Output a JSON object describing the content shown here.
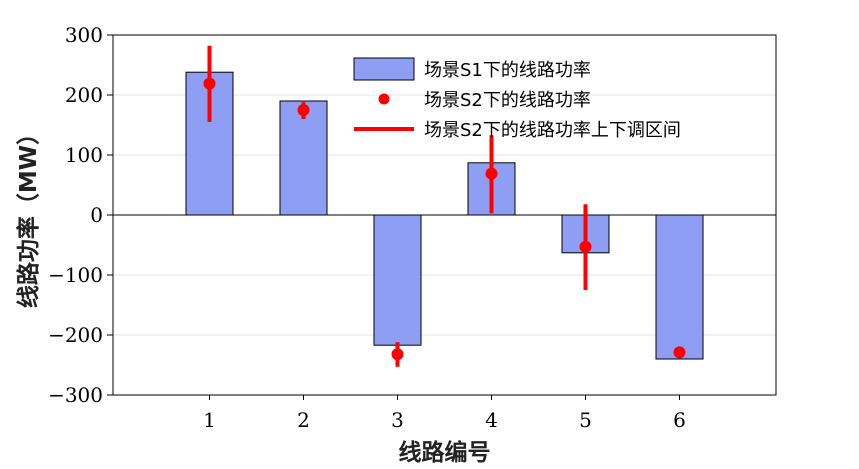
{
  "chart_data": {
    "type": "bar",
    "title": "",
    "xlabel": "线路编号",
    "ylabel": "线路功率（MW）",
    "categories": [
      "1",
      "2",
      "3",
      "4",
      "5",
      "6"
    ],
    "ylim": [
      -300,
      300
    ],
    "yticks": [
      300,
      200,
      100,
      0,
      -100,
      -200,
      -300
    ],
    "ytick_labels": [
      "300",
      "200",
      "100",
      "0",
      "−100",
      "−200",
      "−300"
    ],
    "grid": true,
    "legend_position": "top-right",
    "series": [
      {
        "name": "场景S1下的线路功率",
        "kind": "bar",
        "color": "#8e9ef3",
        "values": [
          238,
          190,
          -217,
          87,
          -63,
          -240
        ]
      },
      {
        "name": "场景S2下的线路功率",
        "kind": "point",
        "color": "#ff0000",
        "values": [
          219,
          175,
          -232,
          69,
          -53,
          -229
        ]
      },
      {
        "name": "场景S2下的线路功率上下调区间",
        "kind": "errorbar",
        "color": "#ff0000",
        "lower": [
          155,
          160,
          -253,
          3,
          -125,
          -234
        ],
        "upper": [
          282,
          188,
          -212,
          133,
          18,
          -222
        ]
      }
    ]
  }
}
